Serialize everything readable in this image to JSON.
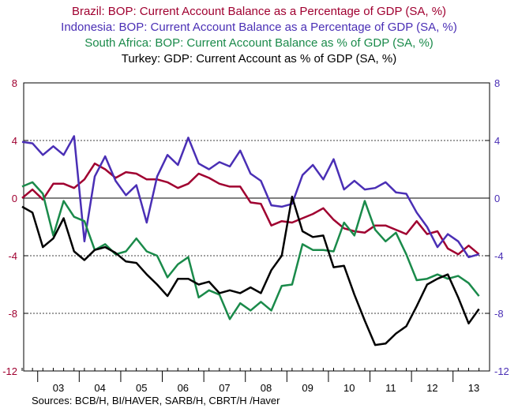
{
  "chart_data": {
    "type": "line",
    "titles": [
      {
        "text": "Brazil: BOP: Current Account Balance as a Percentage of GDP (SA, %)",
        "color": "#a00030"
      },
      {
        "text": "Indonesia: BOP: Current Account Balance as a Percentage of GDP (SA, %)",
        "color": "#4a2fb5"
      },
      {
        "text": "South Africa: BOP: Current Account Balance as % of GDP (SA, %)",
        "color": "#1a8a4a"
      },
      {
        "text": "Turkey: GDP: Current Account as % of GDP (SA, %)",
        "color": "#000000"
      }
    ],
    "source": "Sources:   BCB/H, BI/HAVER, SARB/H, CBRT/H /Haver",
    "categories": [
      null,
      null,
      null,
      "03",
      null,
      null,
      null,
      "04",
      null,
      null,
      null,
      "05",
      null,
      null,
      null,
      "06",
      null,
      null,
      null,
      "07",
      null,
      null,
      null,
      "08",
      null,
      null,
      null,
      "09",
      null,
      null,
      null,
      "10",
      null,
      null,
      null,
      "11",
      null,
      null,
      null,
      "12",
      null,
      null,
      null,
      "13",
      null
    ],
    "ylim": [
      -12,
      8
    ],
    "yticks": [
      -12,
      -8,
      -4,
      0,
      4,
      8
    ],
    "y2lim": [
      -12,
      8
    ],
    "y2ticks": [
      -12,
      -8,
      -4,
      0,
      4,
      8
    ],
    "grid": true,
    "series": [
      {
        "name": "Brazil",
        "color": "#a00030",
        "values": [
          0.0,
          0.6,
          -0.1,
          1.0,
          1.0,
          0.7,
          1.3,
          2.4,
          2.0,
          1.4,
          1.8,
          1.7,
          1.3,
          1.3,
          1.1,
          0.7,
          1.0,
          1.7,
          1.4,
          1.0,
          0.8,
          0.8,
          -0.3,
          -0.4,
          -1.9,
          -1.6,
          -1.7,
          -1.4,
          -1.1,
          -0.7,
          -1.5,
          -2.1,
          -2.3,
          -2.4,
          -1.9,
          -1.9,
          -2.2,
          -2.5,
          -1.6,
          -2.5,
          -2.3,
          -3.5,
          -3.9,
          -3.3,
          -3.9
        ]
      },
      {
        "name": "Indonesia",
        "color": "#4a2fb5",
        "values": [
          3.9,
          3.8,
          3.0,
          3.6,
          3.0,
          4.3,
          -3.0,
          1.5,
          2.9,
          1.2,
          0.2,
          0.9,
          -1.7,
          1.5,
          3.0,
          2.3,
          4.2,
          2.4,
          2.0,
          2.5,
          2.2,
          3.3,
          1.7,
          1.2,
          -0.5,
          -0.6,
          -0.4,
          1.6,
          2.3,
          1.3,
          2.7,
          0.6,
          1.2,
          0.6,
          0.7,
          1.1,
          0.4,
          0.3,
          -1.0,
          -2.0,
          -3.4,
          -2.5,
          -3.0,
          -4.1,
          -3.9
        ]
      },
      {
        "name": "South Africa",
        "color": "#1a8a4a",
        "values": [
          0.8,
          1.1,
          0.3,
          -2.6,
          -0.2,
          -1.3,
          -1.6,
          -3.6,
          -3.2,
          -3.9,
          -3.7,
          -2.8,
          -3.7,
          -4.0,
          -5.5,
          -4.6,
          -4.1,
          -6.9,
          -6.4,
          -6.7,
          -8.4,
          -7.3,
          -7.8,
          -7.2,
          -7.8,
          -6.1,
          -6.0,
          -3.2,
          -3.6,
          -3.6,
          -3.7,
          -1.7,
          -2.6,
          -0.2,
          -2.2,
          -3.0,
          -2.4,
          -3.9,
          -5.7,
          -5.6,
          -5.3,
          -5.6,
          -5.4,
          -5.9,
          -6.8
        ]
      },
      {
        "name": "Turkey",
        "color": "#000000",
        "values": [
          -0.6,
          -1.0,
          -3.4,
          -2.8,
          -1.4,
          -3.7,
          -4.3,
          -3.6,
          -3.4,
          -3.8,
          -4.4,
          -4.5,
          -5.3,
          -6.0,
          -6.8,
          -5.6,
          -5.6,
          -6.0,
          -5.8,
          -6.6,
          -6.4,
          -6.6,
          -6.2,
          -6.6,
          -5.0,
          -4.0,
          0.1,
          -2.3,
          -2.7,
          -2.6,
          -4.8,
          -4.7,
          -6.7,
          -8.5,
          -10.2,
          -10.1,
          -9.4,
          -8.9,
          -7.5,
          -6.0,
          -5.6,
          -5.3,
          -6.9,
          -8.7,
          -7.7
        ]
      }
    ]
  }
}
